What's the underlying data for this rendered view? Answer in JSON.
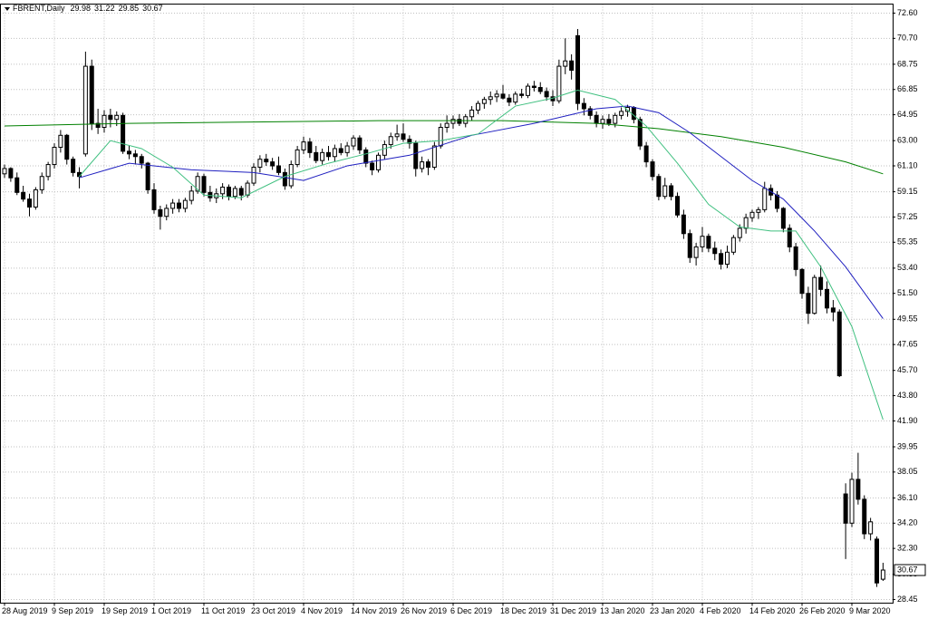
{
  "chart_data": {
    "type": "candlestick",
    "title": "FBRENT,Daily",
    "categories": [
      "28 Aug 2019",
      null,
      null,
      null,
      null,
      null,
      null,
      null,
      "9 Sep 2019",
      null,
      null,
      null,
      null,
      null,
      null,
      null,
      "19 Sep 2019",
      null,
      null,
      null,
      null,
      null,
      null,
      null,
      "1 Oct 2019",
      null,
      null,
      null,
      null,
      null,
      null,
      null,
      "11 Oct 2019",
      null,
      null,
      null,
      null,
      null,
      null,
      null,
      "23 Oct 2019",
      null,
      null,
      null,
      null,
      null,
      null,
      null,
      "4 Nov 2019",
      null,
      null,
      null,
      null,
      null,
      null,
      null,
      "14 Nov 2019",
      null,
      null,
      null,
      null,
      null,
      null,
      null,
      "26 Nov 2019",
      null,
      null,
      null,
      null,
      null,
      null,
      null,
      "6 Dec 2019",
      null,
      null,
      null,
      null,
      null,
      null,
      null,
      "18 Dec 2019",
      null,
      null,
      null,
      null,
      null,
      null,
      null,
      "31 Dec 2019",
      null,
      null,
      null,
      null,
      null,
      null,
      null,
      "13 Jan 2020",
      null,
      null,
      null,
      null,
      null,
      null,
      null,
      "23 Jan 2020",
      null,
      null,
      null,
      null,
      null,
      null,
      null,
      "4 Feb 2020",
      null,
      null,
      null,
      null,
      null,
      null,
      null,
      "14 Feb 2020",
      null,
      null,
      null,
      null,
      null,
      null,
      null,
      "26 Feb 2020",
      null,
      null,
      null,
      null,
      null,
      null,
      null,
      "9 Mar 2020",
      null,
      null,
      null,
      null,
      null
    ],
    "ohlc": [
      [
        60.5,
        61.2,
        60.2,
        60.9
      ],
      [
        60.9,
        61.0,
        59.9,
        60.2
      ],
      [
        60.2,
        60.6,
        58.9,
        59.1
      ],
      [
        59.1,
        59.6,
        58.4,
        58.6
      ],
      [
        58.6,
        59.0,
        57.3,
        58.0
      ],
      [
        58.0,
        59.5,
        57.8,
        59.3
      ],
      [
        59.3,
        60.6,
        59.0,
        60.3
      ],
      [
        60.3,
        61.4,
        60.0,
        61.2
      ],
      [
        61.2,
        62.8,
        60.9,
        62.5
      ],
      [
        62.5,
        63.8,
        62.1,
        63.4
      ],
      [
        63.4,
        63.5,
        61.2,
        61.6
      ],
      [
        61.6,
        61.8,
        60.3,
        60.6
      ],
      [
        60.6,
        61.0,
        59.4,
        60.3
      ],
      [
        62.0,
        69.7,
        61.8,
        68.6
      ],
      [
        68.6,
        69.1,
        63.8,
        64.3
      ],
      [
        64.3,
        65.4,
        63.5,
        64.0
      ],
      [
        64.0,
        65.3,
        63.6,
        64.9
      ],
      [
        64.9,
        65.4,
        64.0,
        64.6
      ],
      [
        64.6,
        65.2,
        64.1,
        64.9
      ],
      [
        64.9,
        65.1,
        62.0,
        62.2
      ],
      [
        62.2,
        62.6,
        61.6,
        62.0
      ],
      [
        62.0,
        62.3,
        61.2,
        61.8
      ],
      [
        61.8,
        62.0,
        60.9,
        61.3
      ],
      [
        61.3,
        61.4,
        59.0,
        59.3
      ],
      [
        59.3,
        59.8,
        57.5,
        57.8
      ],
      [
        57.8,
        58.1,
        56.3,
        57.3
      ],
      [
        57.3,
        58.2,
        57.0,
        57.9
      ],
      [
        57.9,
        58.6,
        57.5,
        58.3
      ],
      [
        58.3,
        58.6,
        57.6,
        57.9
      ],
      [
        57.9,
        58.7,
        57.6,
        58.5
      ],
      [
        58.5,
        59.6,
        58.2,
        59.2
      ],
      [
        59.2,
        60.6,
        59.0,
        60.3
      ],
      [
        60.3,
        60.5,
        58.8,
        59.1
      ],
      [
        59.1,
        59.6,
        58.4,
        58.7
      ],
      [
        58.7,
        59.4,
        58.3,
        59.0
      ],
      [
        59.0,
        59.8,
        58.6,
        59.5
      ],
      [
        59.5,
        59.7,
        58.5,
        58.8
      ],
      [
        58.8,
        59.6,
        58.6,
        59.4
      ],
      [
        59.4,
        59.6,
        58.5,
        58.9
      ],
      [
        58.9,
        60.0,
        58.7,
        59.8
      ],
      [
        59.8,
        61.3,
        59.6,
        61.0
      ],
      [
        61.0,
        61.9,
        60.6,
        61.6
      ],
      [
        61.6,
        62.0,
        61.1,
        61.4
      ],
      [
        61.4,
        61.7,
        60.8,
        61.1
      ],
      [
        61.1,
        61.8,
        60.4,
        60.6
      ],
      [
        60.6,
        60.9,
        59.3,
        59.6
      ],
      [
        59.6,
        61.5,
        59.4,
        61.2
      ],
      [
        61.2,
        62.6,
        61.0,
        62.3
      ],
      [
        62.3,
        63.3,
        62.0,
        62.9
      ],
      [
        62.9,
        63.2,
        61.7,
        62.1
      ],
      [
        62.1,
        62.6,
        61.3,
        61.5
      ],
      [
        61.5,
        62.4,
        61.2,
        62.1
      ],
      [
        62.1,
        62.6,
        61.5,
        61.8
      ],
      [
        61.8,
        62.7,
        61.4,
        62.4
      ],
      [
        62.4,
        62.8,
        61.9,
        62.1
      ],
      [
        62.1,
        62.9,
        61.8,
        62.6
      ],
      [
        62.6,
        63.4,
        62.3,
        63.2
      ],
      [
        63.2,
        63.4,
        62.0,
        62.3
      ],
      [
        62.3,
        62.5,
        61.0,
        61.3
      ],
      [
        61.3,
        61.5,
        60.4,
        60.8
      ],
      [
        60.8,
        62.1,
        60.6,
        61.9
      ],
      [
        61.9,
        63.0,
        61.6,
        62.7
      ],
      [
        62.7,
        63.6,
        62.4,
        63.3
      ],
      [
        63.3,
        64.2,
        63.0,
        63.5
      ],
      [
        63.5,
        64.3,
        62.9,
        63.1
      ],
      [
        63.1,
        63.4,
        62.4,
        62.8
      ],
      [
        62.8,
        63.0,
        60.3,
        60.9
      ],
      [
        60.9,
        61.8,
        60.6,
        61.4
      ],
      [
        61.4,
        61.6,
        60.4,
        61.0
      ],
      [
        61.0,
        62.9,
        60.8,
        62.6
      ],
      [
        62.6,
        64.3,
        62.4,
        64.0
      ],
      [
        64.0,
        64.9,
        63.6,
        64.3
      ],
      [
        64.3,
        64.9,
        63.9,
        64.6
      ],
      [
        64.6,
        65.0,
        64.1,
        64.3
      ],
      [
        64.3,
        65.0,
        64.0,
        64.8
      ],
      [
        64.8,
        65.6,
        64.5,
        65.3
      ],
      [
        65.3,
        66.0,
        65.0,
        65.8
      ],
      [
        65.8,
        66.3,
        65.4,
        66.1
      ],
      [
        66.1,
        66.7,
        65.7,
        66.3
      ],
      [
        66.3,
        66.8,
        65.9,
        66.5
      ],
      [
        66.5,
        67.2,
        66.1,
        66.2
      ],
      [
        66.2,
        66.5,
        65.6,
        65.9
      ],
      [
        65.9,
        66.7,
        65.7,
        66.5
      ],
      [
        66.5,
        66.9,
        66.2,
        66.4
      ],
      [
        66.4,
        67.3,
        66.2,
        67.1
      ],
      [
        67.1,
        67.5,
        66.7,
        67.0
      ],
      [
        67.0,
        67.4,
        66.5,
        66.7
      ],
      [
        66.7,
        67.0,
        66.0,
        66.3
      ],
      [
        66.3,
        66.8,
        65.6,
        66.0
      ],
      [
        66.0,
        69.1,
        65.8,
        68.6
      ],
      [
        68.6,
        70.7,
        68.0,
        69.0
      ],
      [
        69.0,
        69.5,
        67.6,
        68.3
      ],
      [
        70.9,
        71.4,
        65.3,
        65.8
      ],
      [
        65.8,
        66.2,
        64.9,
        65.4
      ],
      [
        65.4,
        65.6,
        64.6,
        64.9
      ],
      [
        64.9,
        65.2,
        64.0,
        64.3
      ],
      [
        64.3,
        64.9,
        63.9,
        64.6
      ],
      [
        64.6,
        65.0,
        64.1,
        64.3
      ],
      [
        64.3,
        65.1,
        64.0,
        64.9
      ],
      [
        64.9,
        65.5,
        64.6,
        65.2
      ],
      [
        65.2,
        65.7,
        64.8,
        65.5
      ],
      [
        65.5,
        65.6,
        64.3,
        64.6
      ],
      [
        64.6,
        64.8,
        62.3,
        62.6
      ],
      [
        62.6,
        62.9,
        61.0,
        61.4
      ],
      [
        61.4,
        61.6,
        60.0,
        60.3
      ],
      [
        60.3,
        60.5,
        58.5,
        58.8
      ],
      [
        58.8,
        60.2,
        58.6,
        59.6
      ],
      [
        59.6,
        59.8,
        58.5,
        58.8
      ],
      [
        58.8,
        59.1,
        57.2,
        57.4
      ],
      [
        57.4,
        57.8,
        55.6,
        56.0
      ],
      [
        56.0,
        56.3,
        53.8,
        54.2
      ],
      [
        54.2,
        55.3,
        53.6,
        55.0
      ],
      [
        55.0,
        56.5,
        54.6,
        55.8
      ],
      [
        55.8,
        56.0,
        54.6,
        54.9
      ],
      [
        54.9,
        55.4,
        54.0,
        54.5
      ],
      [
        54.5,
        54.8,
        53.3,
        53.7
      ],
      [
        53.7,
        55.1,
        53.4,
        54.6
      ],
      [
        54.6,
        55.9,
        54.4,
        55.7
      ],
      [
        55.7,
        56.7,
        55.4,
        56.4
      ],
      [
        56.4,
        57.5,
        56.0,
        57.2
      ],
      [
        57.2,
        57.8,
        56.9,
        57.6
      ],
      [
        57.6,
        58.0,
        57.1,
        57.8
      ],
      [
        57.8,
        59.9,
        57.6,
        59.4
      ],
      [
        59.4,
        59.7,
        58.5,
        58.9
      ],
      [
        58.9,
        59.2,
        57.6,
        57.9
      ],
      [
        57.9,
        58.0,
        56.1,
        56.4
      ],
      [
        56.4,
        56.7,
        54.6,
        55.0
      ],
      [
        55.0,
        55.3,
        52.8,
        53.3
      ],
      [
        53.3,
        53.4,
        51.1,
        51.5
      ],
      [
        51.5,
        52.0,
        49.2,
        50.0
      ],
      [
        50.0,
        52.9,
        49.9,
        52.7
      ],
      [
        52.7,
        53.6,
        51.3,
        51.8
      ],
      [
        51.8,
        52.4,
        50.0,
        50.4
      ],
      [
        50.4,
        51.0,
        49.4,
        50.1
      ],
      [
        50.1,
        50.3,
        45.2,
        45.3
      ],
      [
        36.4,
        37.2,
        31.5,
        34.2
      ],
      [
        34.2,
        38.0,
        33.9,
        37.5
      ],
      [
        37.5,
        39.5,
        35.6,
        36.0
      ],
      [
        36.0,
        36.3,
        33.0,
        33.4
      ],
      [
        33.4,
        34.6,
        32.9,
        34.3
      ],
      [
        33.0,
        33.2,
        29.4,
        29.7
      ],
      [
        29.98,
        31.22,
        29.85,
        30.67
      ]
    ],
    "overlays": [
      {
        "color": "#008000",
        "x": [
          0,
          20,
          40,
          60,
          80,
          95,
          105,
          115,
          125,
          135,
          141
        ],
        "values": [
          64.1,
          64.3,
          64.4,
          64.5,
          64.5,
          64.3,
          63.9,
          63.3,
          62.5,
          61.4,
          60.5
        ]
      },
      {
        "color": "#2020c0",
        "x": [
          12,
          20,
          30,
          40,
          48,
          55,
          65,
          75,
          85,
          95,
          100,
          105,
          110,
          115,
          120,
          125,
          130,
          135,
          141
        ],
        "values": [
          60.2,
          61.3,
          60.8,
          60.6,
          60.0,
          61.1,
          61.9,
          63.4,
          64.3,
          65.4,
          65.6,
          65.1,
          63.6,
          61.8,
          60.0,
          58.6,
          56.2,
          53.5,
          49.6
        ]
      },
      {
        "color": "#40c080",
        "x": [
          12,
          17,
          22,
          27,
          32,
          38,
          45,
          52,
          58,
          64,
          70,
          76,
          82,
          88,
          92,
          98,
          103,
          108,
          113,
          118,
          123,
          127,
          131,
          136,
          141
        ],
        "values": [
          60.3,
          63.0,
          62.4,
          61.0,
          58.9,
          58.7,
          60.3,
          61.3,
          62.0,
          62.8,
          63.0,
          63.5,
          65.6,
          66.2,
          66.8,
          66.1,
          64.1,
          61.3,
          58.2,
          56.5,
          56.2,
          56.2,
          53.5,
          49.0,
          42.0
        ]
      }
    ],
    "ylim": [
      28.18,
      73.28
    ],
    "yticks": [
      {
        "value": 28.45,
        "label": "28.45"
      },
      {
        "value": 30.35,
        "label": "30.35"
      },
      {
        "value": 32.3,
        "label": "32.30"
      },
      {
        "value": 34.2,
        "label": "34.20"
      },
      {
        "value": 36.1,
        "label": "36.10"
      },
      {
        "value": 38.05,
        "label": "38.05"
      },
      {
        "value": 39.95,
        "label": "39.95"
      },
      {
        "value": 41.9,
        "label": "41.90"
      },
      {
        "value": 43.8,
        "label": "43.80"
      },
      {
        "value": 45.7,
        "label": "45.70"
      },
      {
        "value": 47.65,
        "label": "47.65"
      },
      {
        "value": 49.55,
        "label": "49.55"
      },
      {
        "value": 51.5,
        "label": "51.50"
      },
      {
        "value": 53.4,
        "label": "53.40"
      },
      {
        "value": 55.35,
        "label": "55.35"
      },
      {
        "value": 57.25,
        "label": "57.25"
      },
      {
        "value": 59.15,
        "label": "59.15"
      },
      {
        "value": 61.1,
        "label": "61.10"
      },
      {
        "value": 63.0,
        "label": "63.00"
      },
      {
        "value": 64.95,
        "label": "64.95"
      },
      {
        "value": 66.85,
        "label": "66.85"
      },
      {
        "value": 68.75,
        "label": "68.75"
      },
      {
        "value": 70.7,
        "label": "70.70"
      },
      {
        "value": 72.6,
        "label": "72.60"
      }
    ],
    "grid": true
  }
}
